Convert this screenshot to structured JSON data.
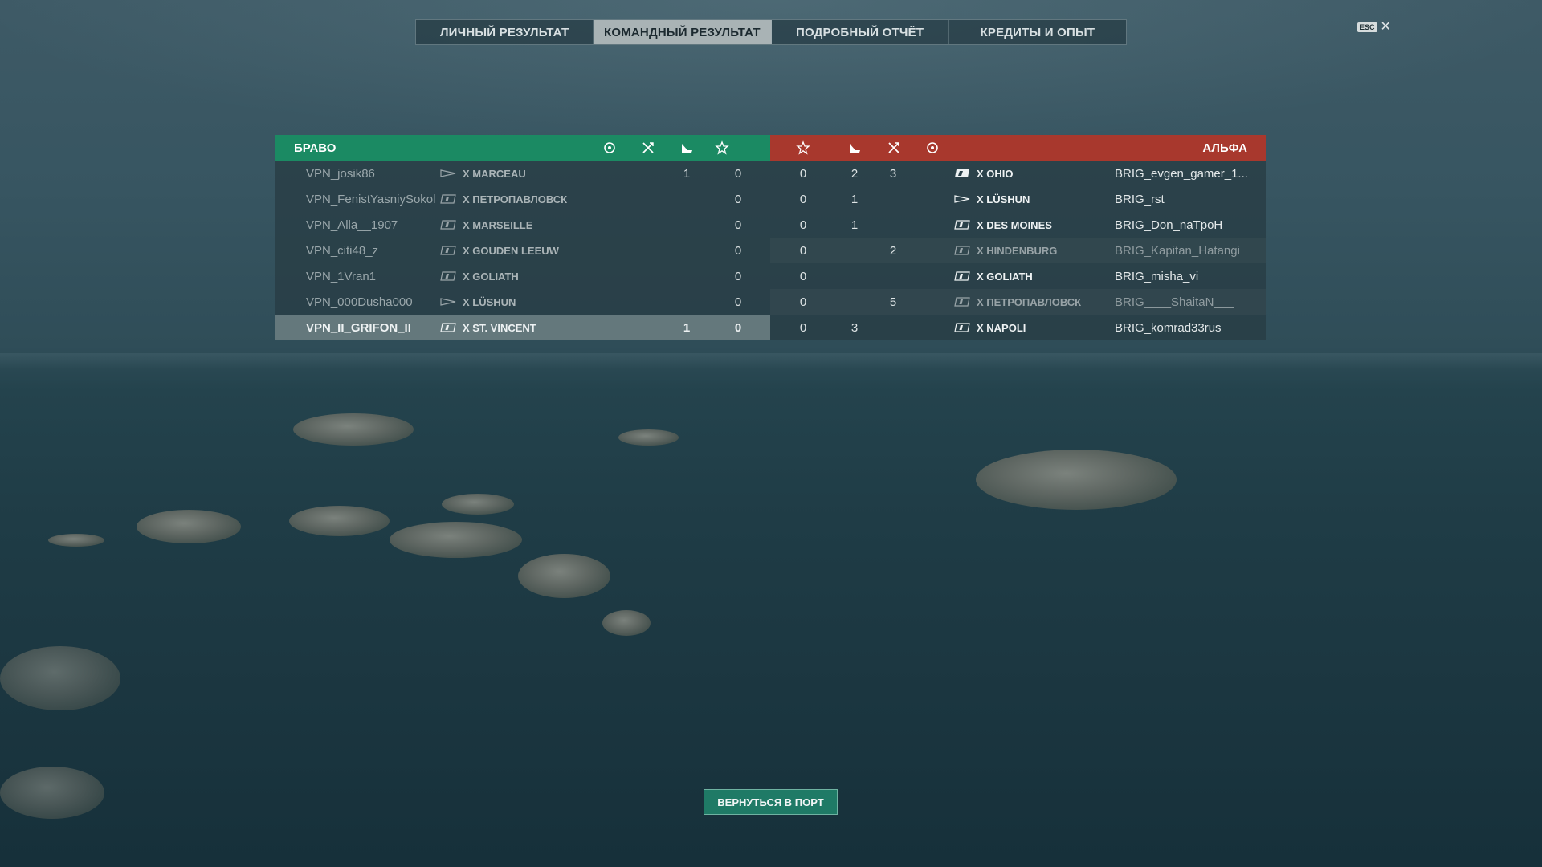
{
  "tabs": [
    {
      "label": "ЛИЧНЫЙ РЕЗУЛЬТАТ",
      "active": false
    },
    {
      "label": "КОМАНДНЫЙ РЕЗУЛЬТАТ",
      "active": true
    },
    {
      "label": "ПОДРОБНЫЙ ОТЧЁТ",
      "active": false
    },
    {
      "label": "КРЕДИТЫ И ОПЫТ",
      "active": false
    }
  ],
  "close": {
    "key_label": "ESC",
    "icon": "close-icon"
  },
  "teams": {
    "left": {
      "name": "БРАВО",
      "color": "#1b8a63",
      "header_icons": [
        "base-capture-icon",
        "planes-icon",
        "ships-destroyed-icon",
        "star-icon"
      ]
    },
    "right": {
      "name": "АЛЬФА",
      "color": "#a8382d",
      "header_icons": [
        "star-icon",
        "ships-destroyed-icon",
        "planes-icon",
        "base-capture-icon"
      ]
    }
  },
  "left_rows": [
    {
      "player": "VPN_josik86",
      "ship": "X MARCEAU",
      "ship_type": "destroyer",
      "kills": "1",
      "stars": "0"
    },
    {
      "player": "VPN_FenistYasniySokol",
      "ship": "X ПЕТРОПАВЛОВСК",
      "ship_type": "cruiser",
      "kills": "",
      "stars": "0"
    },
    {
      "player": "VPN_Alla__1907",
      "ship": "X MARSEILLE",
      "ship_type": "cruiser",
      "kills": "",
      "stars": "0"
    },
    {
      "player": "VPN_citi48_z",
      "ship": "X GOUDEN LEEUW",
      "ship_type": "cruiser",
      "kills": "",
      "stars": "0"
    },
    {
      "player": "VPN_1Vran1",
      "ship": "X GOLIATH",
      "ship_type": "cruiser",
      "kills": "",
      "stars": "0"
    },
    {
      "player": "VPN_000Dusha000",
      "ship": "X LÜSHUN",
      "ship_type": "destroyer",
      "kills": "",
      "stars": "0"
    },
    {
      "player": "VPN_II_GRIFON_II",
      "ship": "X ST. VINCENT",
      "ship_type": "cruiser",
      "kills": "1",
      "stars": "0",
      "highlighted": true
    }
  ],
  "right_rows": [
    {
      "stars": "0",
      "kills": "2",
      "planes": "3",
      "ship": "X OHIO",
      "ship_type": "battleship",
      "player": "BRIG_evgen_gamer_1...",
      "alive": true
    },
    {
      "stars": "0",
      "kills": "1",
      "planes": "",
      "ship": "X LÜSHUN",
      "ship_type": "destroyer",
      "player": "BRIG_rst",
      "alive": true
    },
    {
      "stars": "0",
      "kills": "1",
      "planes": "",
      "ship": "X DES MOINES",
      "ship_type": "cruiser",
      "player": "BRIG_Don_naTpoH",
      "alive": true
    },
    {
      "stars": "0",
      "kills": "",
      "planes": "2",
      "ship": "X HINDENBURG",
      "ship_type": "cruiser",
      "player": "BRIG_Kapitan_Hatangi",
      "alive": false
    },
    {
      "stars": "0",
      "kills": "",
      "planes": "",
      "ship": "X GOLIATH",
      "ship_type": "cruiser",
      "player": "BRIG_misha_vi",
      "alive": true
    },
    {
      "stars": "0",
      "kills": "",
      "planes": "5",
      "ship": "X ПЕТРОПАВЛОВСК",
      "ship_type": "cruiser",
      "player": "BRIG____ShaitaN___",
      "alive": false
    },
    {
      "stars": "0",
      "kills": "3",
      "planes": "",
      "ship": "X NAPOLI",
      "ship_type": "cruiser",
      "player": "BRIG_komrad33rus",
      "alive": true
    }
  ],
  "return_button": {
    "label": "ВЕРНУТЬСЯ В ПОРТ"
  }
}
